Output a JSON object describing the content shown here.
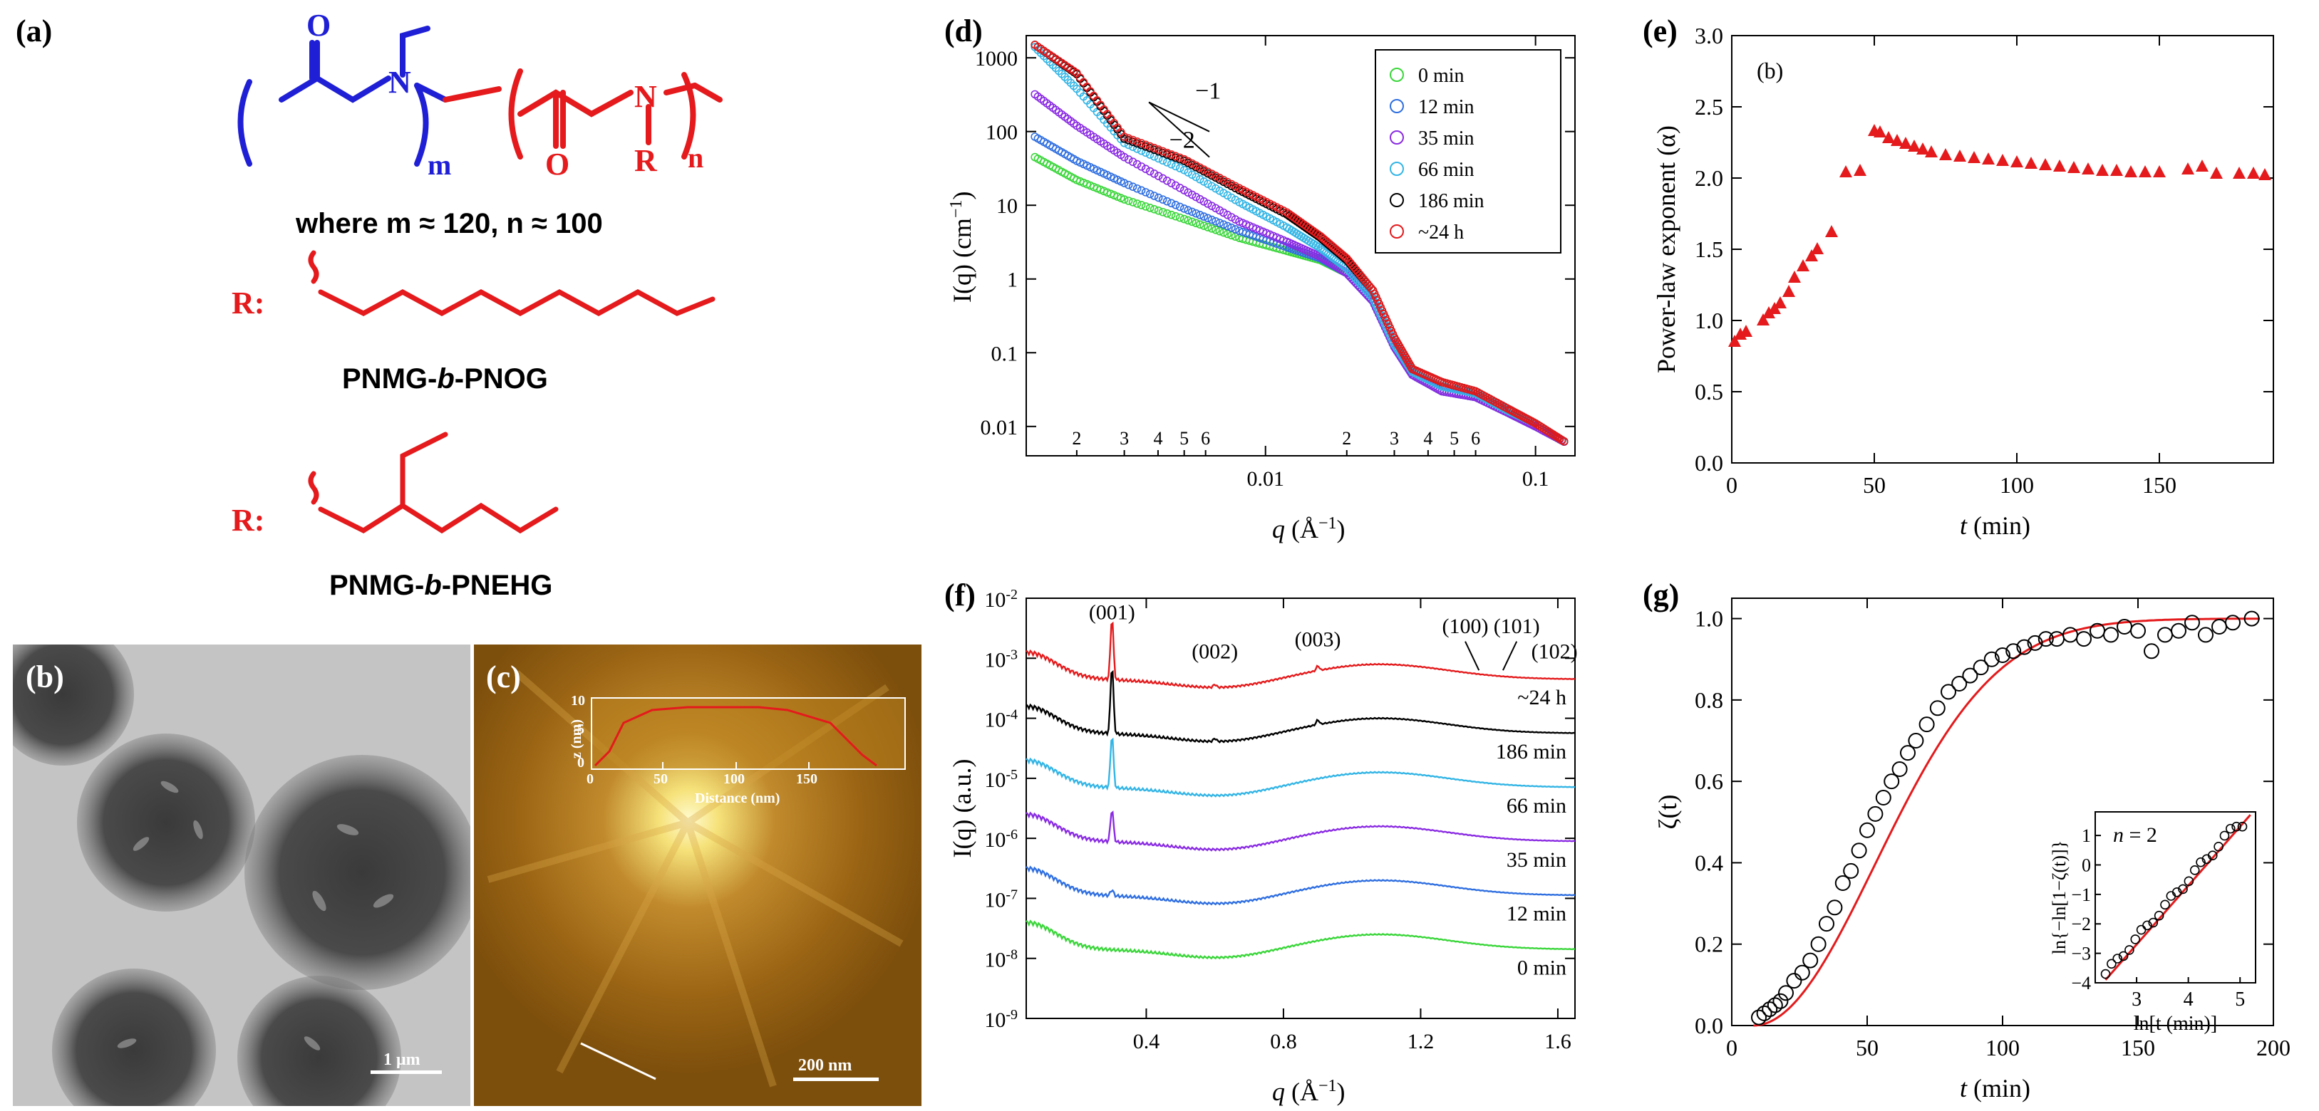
{
  "panels": {
    "a": {
      "label": "(a)",
      "formula_text": "where m ≈ 120, n ≈ 100",
      "r_label": "R:",
      "name1": "PNMG-",
      "name1_b": "b",
      "name1_rest": "-PNOG",
      "name2": "PNMG-",
      "name2_b": "b",
      "name2_rest": "-PNEHG",
      "atoms": {
        "O": "O",
        "N": "N",
        "R": "R",
        "m": "m",
        "n": "n"
      }
    },
    "b": {
      "label": "(b)",
      "scalebar": "1 μm"
    },
    "c": {
      "label": "(c)",
      "scalebar": "200 nm"
    },
    "d": {
      "label": "(d)"
    },
    "e": {
      "label": "(e)"
    },
    "f": {
      "label": "(f)"
    },
    "g": {
      "label": "(g)"
    }
  },
  "colors": {
    "red": "#e41a1c",
    "blue": "#1f1fd6",
    "green": "#3ad63a",
    "sblue": "#2f6fe0",
    "purple": "#8a2be2",
    "cyan": "#33b5e5",
    "black": "#000000"
  },
  "chart_data": [
    {
      "id": "d",
      "type": "scatter",
      "xscale": "log",
      "yscale": "log",
      "xlim": [
        0.0013,
        0.14
      ],
      "ylim": [
        0.004,
        2000
      ],
      "xlabel_var": "q",
      "xlabel_unit": "(Å",
      "xlabel_sup": "−1",
      "xlabel_close": ")",
      "ylabel": "I(q) (cm",
      "ylabel_sup": "−1",
      "ylabel_close": ")",
      "xticks_major": [
        0.01,
        0.1
      ],
      "xtick_labels_major": [
        "0.01",
        "0.1"
      ],
      "xticks_minor_labeled": [
        0.002,
        0.003,
        0.004,
        0.005,
        0.006,
        0.02,
        0.03,
        0.04,
        0.05,
        0.06
      ],
      "xtick_labels_minor": [
        "2",
        "3",
        "4",
        "5",
        "6",
        "2",
        "3",
        "4",
        "5",
        "6"
      ],
      "yticks": [
        0.01,
        0.1,
        1,
        10,
        100,
        1000
      ],
      "ytick_labels": [
        "0.01",
        "0.1",
        "1",
        "10",
        "100",
        "1000"
      ],
      "slope_labels": [
        "−1",
        "−2"
      ],
      "legend_position": "top-right",
      "series": [
        {
          "name": "0 min",
          "color_key": "green",
          "points": [
            [
              0.0014,
              45
            ],
            [
              0.002,
              22
            ],
            [
              0.003,
              12
            ],
            [
              0.005,
              6.5
            ],
            [
              0.008,
              3.6
            ],
            [
              0.012,
              2.4
            ],
            [
              0.016,
              1.8
            ],
            [
              0.02,
              1.2
            ],
            [
              0.025,
              0.5
            ],
            [
              0.03,
              0.12
            ],
            [
              0.035,
              0.05
            ],
            [
              0.045,
              0.03
            ],
            [
              0.06,
              0.025
            ],
            [
              0.08,
              0.015
            ],
            [
              0.1,
              0.01
            ],
            [
              0.13,
              0.006
            ]
          ]
        },
        {
          "name": "12 min",
          "color_key": "sblue",
          "points": [
            [
              0.0014,
              85
            ],
            [
              0.002,
              40
            ],
            [
              0.003,
              20
            ],
            [
              0.005,
              9
            ],
            [
              0.008,
              4.5
            ],
            [
              0.012,
              2.7
            ],
            [
              0.016,
              1.9
            ],
            [
              0.02,
              1.2
            ],
            [
              0.025,
              0.5
            ],
            [
              0.03,
              0.12
            ],
            [
              0.035,
              0.05
            ],
            [
              0.045,
              0.03
            ],
            [
              0.06,
              0.025
            ],
            [
              0.08,
              0.015
            ],
            [
              0.1,
              0.01
            ],
            [
              0.13,
              0.006
            ]
          ]
        },
        {
          "name": "35 min",
          "color_key": "purple",
          "points": [
            [
              0.0014,
              320
            ],
            [
              0.002,
              120
            ],
            [
              0.003,
              45
            ],
            [
              0.005,
              16
            ],
            [
              0.008,
              6
            ],
            [
              0.012,
              3.2
            ],
            [
              0.016,
              2
            ],
            [
              0.02,
              1.2
            ],
            [
              0.025,
              0.5
            ],
            [
              0.03,
              0.12
            ],
            [
              0.035,
              0.05
            ],
            [
              0.045,
              0.03
            ],
            [
              0.06,
              0.025
            ],
            [
              0.08,
              0.015
            ],
            [
              0.1,
              0.01
            ],
            [
              0.13,
              0.006
            ]
          ]
        },
        {
          "name": "66 min",
          "color_key": "cyan",
          "points": [
            [
              0.0014,
              1400
            ],
            [
              0.002,
              380
            ],
            [
              0.003,
              70
            ],
            [
              0.005,
              30
            ],
            [
              0.008,
              11
            ],
            [
              0.012,
              5
            ],
            [
              0.016,
              2.6
            ],
            [
              0.02,
              1.4
            ],
            [
              0.025,
              0.55
            ],
            [
              0.03,
              0.13
            ],
            [
              0.035,
              0.055
            ],
            [
              0.045,
              0.035
            ],
            [
              0.06,
              0.028
            ],
            [
              0.08,
              0.016
            ],
            [
              0.1,
              0.011
            ],
            [
              0.13,
              0.006
            ]
          ]
        },
        {
          "name": "186 min",
          "color_key": "black",
          "points": [
            [
              0.0014,
              1500
            ],
            [
              0.002,
              600
            ],
            [
              0.003,
              80
            ],
            [
              0.005,
              40
            ],
            [
              0.008,
              16
            ],
            [
              0.012,
              7.5
            ],
            [
              0.016,
              3.6
            ],
            [
              0.02,
              1.8
            ],
            [
              0.025,
              0.7
            ],
            [
              0.03,
              0.16
            ],
            [
              0.035,
              0.06
            ],
            [
              0.045,
              0.04
            ],
            [
              0.06,
              0.03
            ],
            [
              0.08,
              0.017
            ],
            [
              0.1,
              0.011
            ],
            [
              0.13,
              0.006
            ]
          ]
        },
        {
          "name": "~24 h",
          "color_key": "red",
          "points": [
            [
              0.0014,
              1500
            ],
            [
              0.002,
              620
            ],
            [
              0.003,
              85
            ],
            [
              0.005,
              42
            ],
            [
              0.008,
              17
            ],
            [
              0.012,
              8
            ],
            [
              0.016,
              3.8
            ],
            [
              0.02,
              1.9
            ],
            [
              0.025,
              0.7
            ],
            [
              0.03,
              0.16
            ],
            [
              0.035,
              0.06
            ],
            [
              0.045,
              0.04
            ],
            [
              0.06,
              0.03
            ],
            [
              0.08,
              0.017
            ],
            [
              0.1,
              0.011
            ],
            [
              0.13,
              0.006
            ]
          ]
        }
      ]
    },
    {
      "id": "e",
      "type": "scatter",
      "xlim": [
        0,
        190
      ],
      "ylim": [
        0,
        3.0
      ],
      "xlabel_var": "t",
      "xlabel_rest": " (min)",
      "ylabel": "Power-law exponent (α)",
      "annotation": "(b)",
      "xticks": [
        0,
        50,
        100,
        150
      ],
      "yticks": [
        0,
        0.5,
        1.0,
        1.5,
        2.0,
        2.5,
        3.0
      ],
      "ytick_labels": [
        "0.0",
        "0.5",
        "1.0",
        "1.5",
        "2.0",
        "2.5",
        "3.0"
      ],
      "series": [
        {
          "name": "",
          "color_key": "red",
          "marker": "triangle",
          "points": [
            [
              1,
              0.85
            ],
            [
              3,
              0.9
            ],
            [
              5,
              0.92
            ],
            [
              11,
              1.0
            ],
            [
              13,
              1.05
            ],
            [
              15,
              1.08
            ],
            [
              17,
              1.12
            ],
            [
              20,
              1.2
            ],
            [
              22,
              1.3
            ],
            [
              25,
              1.38
            ],
            [
              28,
              1.45
            ],
            [
              30,
              1.5
            ],
            [
              35,
              1.62
            ],
            [
              40,
              2.04
            ],
            [
              45,
              2.05
            ],
            [
              50,
              2.33
            ],
            [
              52,
              2.32
            ],
            [
              55,
              2.28
            ],
            [
              58,
              2.26
            ],
            [
              61,
              2.24
            ],
            [
              64,
              2.22
            ],
            [
              67,
              2.2
            ],
            [
              70,
              2.18
            ],
            [
              75,
              2.16
            ],
            [
              80,
              2.15
            ],
            [
              85,
              2.14
            ],
            [
              90,
              2.13
            ],
            [
              95,
              2.12
            ],
            [
              100,
              2.11
            ],
            [
              105,
              2.1
            ],
            [
              110,
              2.09
            ],
            [
              115,
              2.08
            ],
            [
              120,
              2.07
            ],
            [
              125,
              2.06
            ],
            [
              130,
              2.05
            ],
            [
              135,
              2.05
            ],
            [
              140,
              2.04
            ],
            [
              145,
              2.04
            ],
            [
              150,
              2.04
            ],
            [
              160,
              2.06
            ],
            [
              165,
              2.08
            ],
            [
              170,
              2.03
            ],
            [
              178,
              2.03
            ],
            [
              183,
              2.03
            ],
            [
              187,
              2.02
            ]
          ]
        }
      ]
    },
    {
      "id": "f",
      "type": "line",
      "xlim": [
        0.05,
        1.65
      ],
      "xlabel_var": "q",
      "xlabel_unit": "(Å",
      "xlabel_sup": "−1",
      "xlabel_close": ")",
      "ylabel": "I(q) (a.u.)",
      "xticks": [
        0.4,
        0.8,
        1.2,
        1.6
      ],
      "xtick_labels": [
        "0.4",
        "0.8",
        "1.2",
        "1.6"
      ],
      "yticks_exp": [
        -9,
        -8,
        -7,
        -6,
        -5,
        -4,
        -3,
        -2
      ],
      "peak_labels": [
        "(001)",
        "(002)",
        "(003)",
        "(100)",
        "(101)",
        "(102)"
      ],
      "series": [
        {
          "name": "~24 h",
          "color_key": "red"
        },
        {
          "name": "186 min",
          "color_key": "black"
        },
        {
          "name": "66 min",
          "color_key": "cyan"
        },
        {
          "name": "35 min",
          "color_key": "purple"
        },
        {
          "name": "12 min",
          "color_key": "sblue"
        },
        {
          "name": "0 min",
          "color_key": "green"
        }
      ]
    },
    {
      "id": "g",
      "type": "scatter",
      "xlim": [
        0,
        200
      ],
      "ylim": [
        0,
        1.05
      ],
      "xlabel_var": "t",
      "xlabel_rest": " (min)",
      "ylabel": "ζ(t)",
      "xticks": [
        0,
        50,
        100,
        150,
        200
      ],
      "yticks": [
        0,
        0.2,
        0.4,
        0.6,
        0.8,
        1.0
      ],
      "ytick_labels": [
        "0.0",
        "0.2",
        "0.4",
        "0.6",
        "0.8",
        "1.0"
      ],
      "fit": {
        "type": "avrami",
        "n": 2,
        "t0": 8,
        "k": 0.00025
      },
      "points": [
        [
          10,
          0.02
        ],
        [
          12,
          0.03
        ],
        [
          14,
          0.04
        ],
        [
          16,
          0.05
        ],
        [
          18,
          0.06
        ],
        [
          20,
          0.08
        ],
        [
          23,
          0.11
        ],
        [
          26,
          0.13
        ],
        [
          29,
          0.16
        ],
        [
          32,
          0.2
        ],
        [
          35,
          0.25
        ],
        [
          38,
          0.29
        ],
        [
          41,
          0.35
        ],
        [
          44,
          0.38
        ],
        [
          47,
          0.43
        ],
        [
          50,
          0.48
        ],
        [
          53,
          0.52
        ],
        [
          56,
          0.56
        ],
        [
          59,
          0.6
        ],
        [
          62,
          0.63
        ],
        [
          65,
          0.67
        ],
        [
          68,
          0.7
        ],
        [
          72,
          0.74
        ],
        [
          76,
          0.78
        ],
        [
          80,
          0.82
        ],
        [
          84,
          0.84
        ],
        [
          88,
          0.86
        ],
        [
          92,
          0.88
        ],
        [
          96,
          0.9
        ],
        [
          100,
          0.91
        ],
        [
          104,
          0.92
        ],
        [
          108,
          0.93
        ],
        [
          112,
          0.94
        ],
        [
          116,
          0.95
        ],
        [
          120,
          0.95
        ],
        [
          125,
          0.96
        ],
        [
          130,
          0.95
        ],
        [
          135,
          0.97
        ],
        [
          140,
          0.96
        ],
        [
          145,
          0.98
        ],
        [
          150,
          0.97
        ],
        [
          155,
          0.92
        ],
        [
          160,
          0.96
        ],
        [
          165,
          0.97
        ],
        [
          170,
          0.99
        ],
        [
          175,
          0.96
        ],
        [
          180,
          0.98
        ],
        [
          185,
          0.99
        ],
        [
          192,
          1.0
        ]
      ],
      "inset": {
        "xlim": [
          2.2,
          5.3
        ],
        "ylim": [
          -4,
          1.8
        ],
        "xticks": [
          3,
          4,
          5
        ],
        "yticks": [
          -4,
          -3,
          -2,
          -1,
          0,
          1
        ],
        "xlabel": "ln[t (min)]",
        "ylabel": "ln{−ln[1−ζ(t)]}",
        "annotation": "n = 2",
        "annotation_var": "n",
        "annotation_rest": " = 2"
      }
    }
  ]
}
